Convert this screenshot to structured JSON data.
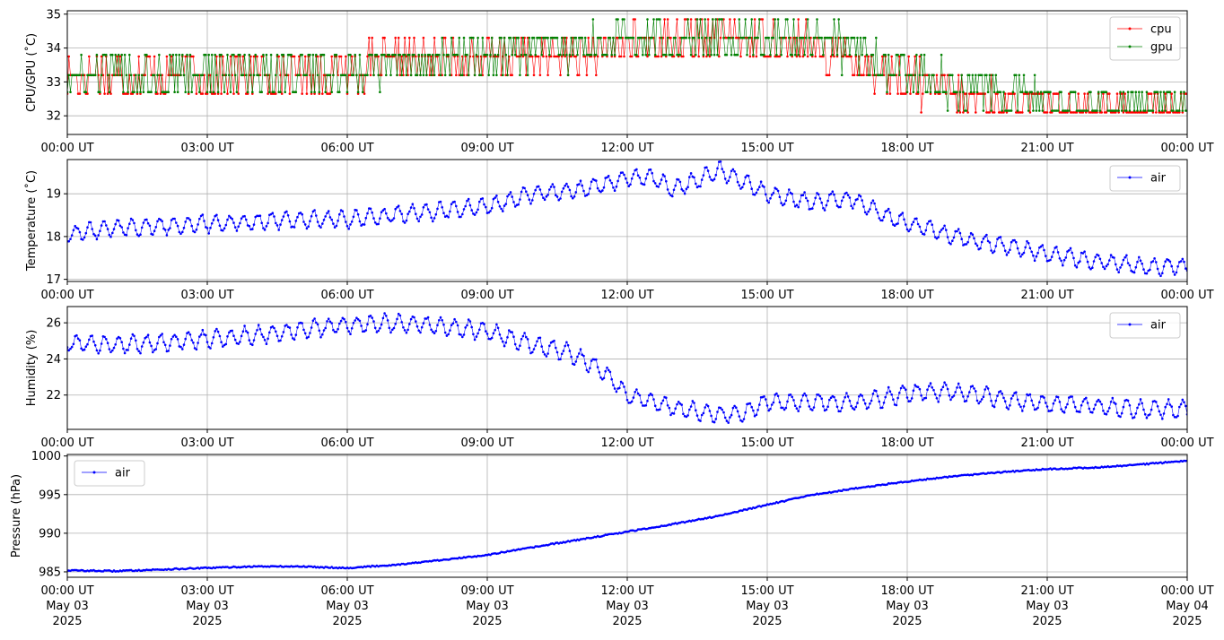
{
  "chart_data": [
    {
      "type": "line",
      "ylabel": "CPU/GPU (˚C)",
      "ylim": [
        31.45,
        35.1
      ],
      "yticks": [
        32,
        33,
        34,
        35
      ],
      "xlim": [
        0,
        24
      ],
      "xticks": [
        0,
        3,
        6,
        9,
        12,
        15,
        18,
        21,
        24
      ],
      "xtick_labels": [
        "00:00 UT",
        "03:00 UT",
        "06:00 UT",
        "09:00 UT",
        "12:00 UT",
        "15:00 UT",
        "18:00 UT",
        "21:00 UT",
        "00:00 UT"
      ],
      "grid": true,
      "legend_position": "top-right",
      "series": [
        {
          "name": "cpu",
          "color": "#ff0000",
          "kind": "quantized",
          "levels": [
            32.1,
            32.65,
            33.2,
            33.75,
            34.3,
            34.85
          ],
          "anchors": [
            [
              0,
              33.2
            ],
            [
              3,
              33.25
            ],
            [
              6,
              33.35
            ],
            [
              7,
              33.55
            ],
            [
              9,
              33.7
            ],
            [
              11,
              33.75
            ],
            [
              12,
              34.1
            ],
            [
              13,
              34.3
            ],
            [
              14,
              34.45
            ],
            [
              15,
              34.2
            ],
            [
              16.5,
              33.9
            ],
            [
              17,
              33.6
            ],
            [
              18,
              33.0
            ],
            [
              19,
              32.6
            ],
            [
              20,
              32.4
            ],
            [
              21,
              32.2
            ],
            [
              24,
              32.15
            ]
          ]
        },
        {
          "name": "gpu",
          "color": "#008000",
          "kind": "quantized",
          "levels": [
            32.15,
            32.7,
            33.2,
            33.8,
            34.3,
            34.85
          ],
          "anchors": [
            [
              0,
              33.2
            ],
            [
              3,
              33.25
            ],
            [
              6,
              33.3
            ],
            [
              7,
              33.5
            ],
            [
              9,
              33.8
            ],
            [
              11,
              34.0
            ],
            [
              12,
              34.25
            ],
            [
              13,
              34.35
            ],
            [
              14,
              34.45
            ],
            [
              15,
              34.3
            ],
            [
              16.5,
              34.1
            ],
            [
              17,
              33.75
            ],
            [
              18,
              33.2
            ],
            [
              19,
              32.9
            ],
            [
              20,
              32.7
            ],
            [
              21,
              32.35
            ],
            [
              24,
              32.2
            ]
          ]
        }
      ]
    },
    {
      "type": "line",
      "ylabel": "Temperature (˚C)",
      "ylim": [
        16.95,
        19.8
      ],
      "yticks": [
        17,
        18,
        19
      ],
      "xlim": [
        0,
        24
      ],
      "xticks": [
        0,
        3,
        6,
        9,
        12,
        15,
        18,
        21,
        24
      ],
      "xtick_labels": [
        "00:00 UT",
        "03:00 UT",
        "06:00 UT",
        "09:00 UT",
        "12:00 UT",
        "15:00 UT",
        "18:00 UT",
        "21:00 UT",
        "00:00 UT"
      ],
      "grid": true,
      "legend_position": "top-right",
      "series": [
        {
          "name": "air",
          "color": "#0000ff",
          "kind": "continuous",
          "osc_amp": 0.18,
          "osc_period": 0.3,
          "noise": 0.05,
          "anchors": [
            [
              0,
              18.05
            ],
            [
              1,
              18.2
            ],
            [
              2,
              18.25
            ],
            [
              3,
              18.3
            ],
            [
              4,
              18.35
            ],
            [
              5,
              18.4
            ],
            [
              6,
              18.4
            ],
            [
              7,
              18.5
            ],
            [
              8,
              18.6
            ],
            [
              9,
              18.7
            ],
            [
              10,
              19.0
            ],
            [
              11,
              19.1
            ],
            [
              12,
              19.35
            ],
            [
              12.5,
              19.4
            ],
            [
              13,
              19.1
            ],
            [
              14,
              19.55
            ],
            [
              15,
              19.0
            ],
            [
              16,
              18.8
            ],
            [
              16.8,
              18.9
            ],
            [
              17.5,
              18.5
            ],
            [
              18,
              18.3
            ],
            [
              19,
              18.0
            ],
            [
              20,
              17.8
            ],
            [
              21,
              17.6
            ],
            [
              22,
              17.45
            ],
            [
              23,
              17.3
            ],
            [
              24,
              17.3
            ]
          ]
        }
      ]
    },
    {
      "type": "line",
      "ylabel": "Humidity (%)",
      "ylim": [
        20.1,
        26.9
      ],
      "yticks": [
        22,
        24,
        26
      ],
      "xlim": [
        0,
        24
      ],
      "xticks": [
        0,
        3,
        6,
        9,
        12,
        15,
        18,
        21,
        24
      ],
      "xtick_labels": [
        "00:00 UT",
        "03:00 UT",
        "06:00 UT",
        "09:00 UT",
        "12:00 UT",
        "15:00 UT",
        "18:00 UT",
        "21:00 UT",
        "00:00 UT"
      ],
      "grid": true,
      "legend_position": "top-right",
      "series": [
        {
          "name": "air",
          "color": "#0000ff",
          "kind": "continuous",
          "osc_amp": 0.45,
          "osc_period": 0.3,
          "noise": 0.12,
          "anchors": [
            [
              0,
              24.9
            ],
            [
              1,
              24.8
            ],
            [
              2,
              24.9
            ],
            [
              3,
              25.1
            ],
            [
              4,
              25.3
            ],
            [
              5,
              25.6
            ],
            [
              6,
              25.9
            ],
            [
              7,
              26.0
            ],
            [
              8,
              25.8
            ],
            [
              9,
              25.5
            ],
            [
              10,
              24.8
            ],
            [
              10.8,
              24.3
            ],
            [
              11.4,
              23.5
            ],
            [
              12,
              22.0
            ],
            [
              13,
              21.3
            ],
            [
              14,
              20.9
            ],
            [
              14.5,
              21.0
            ],
            [
              15,
              21.6
            ],
            [
              16,
              21.6
            ],
            [
              17,
              21.6
            ],
            [
              18,
              22.1
            ],
            [
              19,
              22.2
            ],
            [
              20,
              21.8
            ],
            [
              21,
              21.5
            ],
            [
              22,
              21.4
            ],
            [
              23,
              21.2
            ],
            [
              24,
              21.2
            ]
          ]
        }
      ]
    },
    {
      "type": "line",
      "ylabel": "Pressure (hPa)",
      "ylim": [
        984.3,
        1000.2
      ],
      "yticks": [
        985,
        990,
        995,
        1000
      ],
      "xlim": [
        0,
        24
      ],
      "xticks": [
        0,
        3,
        6,
        9,
        12,
        15,
        18,
        21,
        24
      ],
      "xtick_labels": [
        "00:00 UT",
        "03:00 UT",
        "06:00 UT",
        "09:00 UT",
        "12:00 UT",
        "15:00 UT",
        "18:00 UT",
        "21:00 UT",
        "00:00 UT"
      ],
      "xtick_dates": [
        "May 03",
        "May 03",
        "May 03",
        "May 03",
        "May 03",
        "May 03",
        "May 03",
        "May 03",
        "May 04"
      ],
      "xtick_years": [
        "2025",
        "2025",
        "2025",
        "2025",
        "2025",
        "2025",
        "2025",
        "2025",
        "2025"
      ],
      "grid": true,
      "legend_position": "top-left",
      "series": [
        {
          "name": "air",
          "color": "#0000ff",
          "kind": "continuous",
          "osc_amp": 0.0,
          "osc_period": 1,
          "noise": 0.08,
          "anchors": [
            [
              0,
              985.2
            ],
            [
              1,
              985.1
            ],
            [
              2,
              985.3
            ],
            [
              3,
              985.5
            ],
            [
              4,
              985.7
            ],
            [
              5,
              985.7
            ],
            [
              6,
              985.5
            ],
            [
              7,
              985.9
            ],
            [
              8,
              986.5
            ],
            [
              9,
              987.2
            ],
            [
              10,
              988.2
            ],
            [
              11,
              989.2
            ],
            [
              12,
              990.2
            ],
            [
              13,
              991.2
            ],
            [
              14,
              992.3
            ],
            [
              15,
              993.7
            ],
            [
              16,
              995.0
            ],
            [
              17,
              995.9
            ],
            [
              18,
              996.7
            ],
            [
              19,
              997.4
            ],
            [
              20,
              997.9
            ],
            [
              21,
              998.3
            ],
            [
              22,
              998.5
            ],
            [
              23,
              998.9
            ],
            [
              24,
              999.4
            ]
          ]
        }
      ]
    }
  ]
}
